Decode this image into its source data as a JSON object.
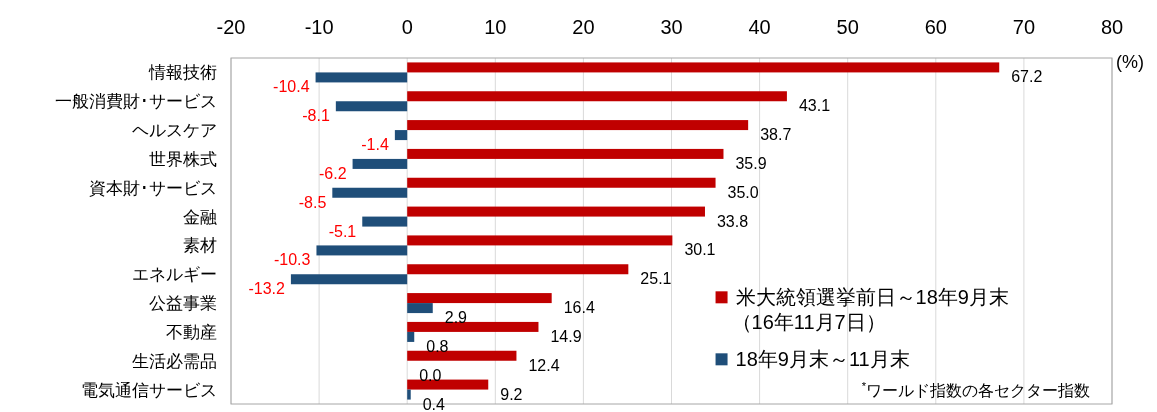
{
  "chart_data": {
    "type": "bar",
    "orientation": "horizontal",
    "xlabel": "(%)",
    "categories": [
      "情報技術",
      "一般消費財･サービス",
      "ヘルスケア",
      "世界株式",
      "資本財･サービス",
      "金融",
      "素材",
      "エネルギー",
      "公益事業",
      "不動産",
      "生活必需品",
      "電気通信サービス"
    ],
    "series": [
      {
        "name": "米大統領選挙前日～18年9月末（16年11月7日）",
        "color": "#c00000",
        "values": [
          67.2,
          43.1,
          38.7,
          35.9,
          35.0,
          33.8,
          30.1,
          25.1,
          16.4,
          14.9,
          12.4,
          9.2
        ],
        "value_labels": [
          "67.2",
          "43.1",
          "38.7",
          "35.9",
          "35.0",
          "33.8",
          "30.1",
          "25.1",
          "16.4",
          "14.9",
          "12.4",
          "9.2"
        ]
      },
      {
        "name": "18年9月末～11月末",
        "color": "#1f4e79",
        "values": [
          -10.4,
          -8.1,
          -1.4,
          -6.2,
          -8.5,
          -5.1,
          -10.3,
          -13.2,
          2.9,
          0.8,
          0.0,
          0.4
        ],
        "value_labels": [
          "-10.4",
          "-8.1",
          "-1.4",
          "-6.2",
          "-8.5",
          "-5.1",
          "-10.3",
          "-13.2",
          "2.9",
          "0.8",
          "0.0",
          "0.4"
        ]
      }
    ],
    "xlim": [
      -20,
      80
    ],
    "xticks": [
      -20,
      -10,
      0,
      10,
      20,
      30,
      40,
      50,
      60,
      70,
      80
    ],
    "grid": "x",
    "legend": "bottom right",
    "annotations": [
      "$^{*}$ワールド指数の各セクター指数"
    ]
  }
}
